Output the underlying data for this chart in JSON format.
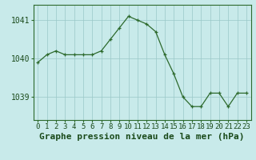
{
  "x_values": [
    0,
    1,
    2,
    3,
    4,
    5,
    6,
    7,
    8,
    9,
    10,
    11,
    12,
    13,
    14,
    15,
    16,
    17,
    18,
    19,
    20,
    21,
    22,
    23
  ],
  "y_values": [
    1039.9,
    1040.1,
    1040.2,
    1040.1,
    1040.1,
    1040.1,
    1040.1,
    1040.2,
    1040.5,
    1040.8,
    1041.1,
    1041.0,
    1040.9,
    1040.7,
    1040.1,
    1039.6,
    1039.0,
    1038.75,
    1038.75,
    1039.1,
    1039.1,
    1038.75,
    1039.1,
    1039.1
  ],
  "line_color": "#2d6a2d",
  "marker_color": "#2d6a2d",
  "bg_color": "#c8eaea",
  "grid_color": "#9ac8c8",
  "axis_color": "#2d6a2d",
  "text_color": "#1a4a1a",
  "ylim": [
    1038.4,
    1041.4
  ],
  "yticks": [
    1039,
    1040,
    1041
  ],
  "xlim": [
    -0.5,
    23.5
  ],
  "xlabel": "Graphe pression niveau de la mer (hPa)",
  "tick_fontsize": 7.0,
  "xlabel_fontsize": 8.0
}
